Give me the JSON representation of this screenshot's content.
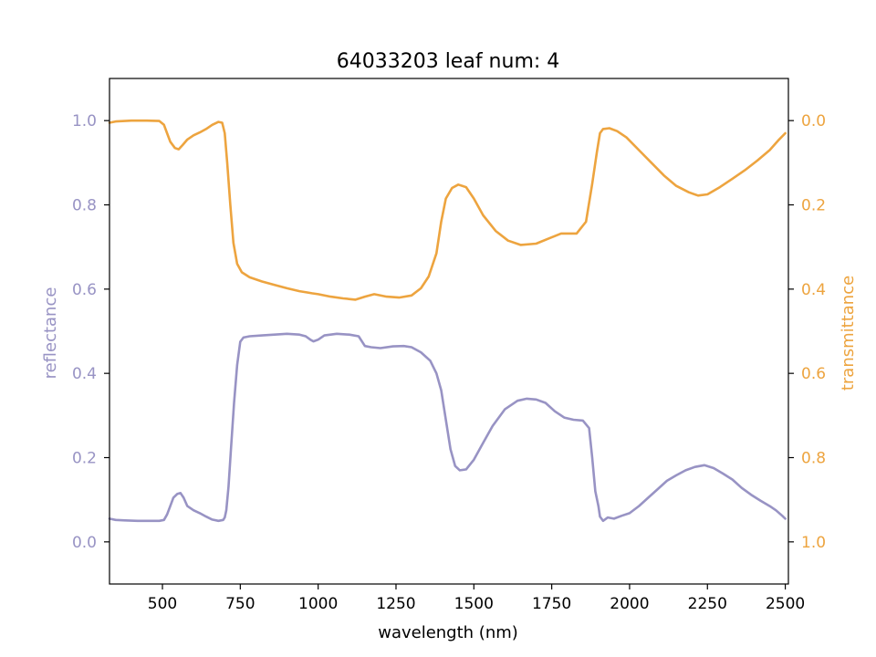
{
  "chart_data": {
    "type": "line",
    "title": "64033203 leaf num: 4",
    "xlabel": "wavelength (nm)",
    "ylabel_left": "reflectance",
    "ylabel_right": "transmittance",
    "xlim": [
      330,
      2510
    ],
    "ylim_left": [
      -0.1,
      1.1
    ],
    "ylim_right": [
      1.1,
      -0.1
    ],
    "right_axis_inverted": true,
    "x_ticks": [
      500,
      750,
      1000,
      1250,
      1500,
      1750,
      2000,
      2250,
      2500
    ],
    "x_tick_labels": [
      "500",
      "750",
      "1000",
      "1250",
      "1500",
      "1750",
      "2000",
      "2250",
      "2500"
    ],
    "y_left_ticks": [
      0.0,
      0.2,
      0.4,
      0.6,
      0.8,
      1.0
    ],
    "y_left_tick_labels": [
      "0.0",
      "0.2",
      "0.4",
      "0.6",
      "0.8",
      "1.0"
    ],
    "y_right_ticks": [
      0.0,
      0.2,
      0.4,
      0.6,
      0.8,
      1.0
    ],
    "y_right_tick_labels": [
      "0.0",
      "0.2",
      "0.4",
      "0.6",
      "0.8",
      "1.0"
    ],
    "grid": false,
    "legend": "none",
    "colors": {
      "reflectance": "#9893c4",
      "transmittance": "#eda43f",
      "axis": "#000000"
    },
    "series": [
      {
        "key": "reflectance",
        "axis": "left",
        "points": [
          [
            330,
            0.055
          ],
          [
            350,
            0.052
          ],
          [
            380,
            0.051
          ],
          [
            420,
            0.05
          ],
          [
            460,
            0.05
          ],
          [
            490,
            0.05
          ],
          [
            505,
            0.052
          ],
          [
            515,
            0.065
          ],
          [
            525,
            0.085
          ],
          [
            535,
            0.105
          ],
          [
            548,
            0.114
          ],
          [
            558,
            0.116
          ],
          [
            568,
            0.105
          ],
          [
            580,
            0.085
          ],
          [
            600,
            0.075
          ],
          [
            620,
            0.068
          ],
          [
            640,
            0.06
          ],
          [
            660,
            0.053
          ],
          [
            680,
            0.05
          ],
          [
            695,
            0.052
          ],
          [
            700,
            0.058
          ],
          [
            705,
            0.075
          ],
          [
            712,
            0.13
          ],
          [
            720,
            0.22
          ],
          [
            730,
            0.33
          ],
          [
            740,
            0.42
          ],
          [
            750,
            0.475
          ],
          [
            760,
            0.485
          ],
          [
            780,
            0.488
          ],
          [
            820,
            0.49
          ],
          [
            860,
            0.492
          ],
          [
            900,
            0.494
          ],
          [
            940,
            0.492
          ],
          [
            960,
            0.488
          ],
          [
            975,
            0.48
          ],
          [
            985,
            0.476
          ],
          [
            1000,
            0.48
          ],
          [
            1020,
            0.49
          ],
          [
            1060,
            0.494
          ],
          [
            1100,
            0.492
          ],
          [
            1130,
            0.488
          ],
          [
            1150,
            0.465
          ],
          [
            1170,
            0.462
          ],
          [
            1200,
            0.46
          ],
          [
            1240,
            0.464
          ],
          [
            1275,
            0.465
          ],
          [
            1300,
            0.462
          ],
          [
            1330,
            0.45
          ],
          [
            1360,
            0.43
          ],
          [
            1380,
            0.4
          ],
          [
            1395,
            0.36
          ],
          [
            1410,
            0.29
          ],
          [
            1425,
            0.22
          ],
          [
            1440,
            0.18
          ],
          [
            1455,
            0.17
          ],
          [
            1475,
            0.172
          ],
          [
            1500,
            0.195
          ],
          [
            1530,
            0.235
          ],
          [
            1560,
            0.275
          ],
          [
            1600,
            0.315
          ],
          [
            1640,
            0.335
          ],
          [
            1670,
            0.34
          ],
          [
            1700,
            0.338
          ],
          [
            1730,
            0.33
          ],
          [
            1760,
            0.31
          ],
          [
            1790,
            0.295
          ],
          [
            1820,
            0.29
          ],
          [
            1850,
            0.288
          ],
          [
            1870,
            0.27
          ],
          [
            1880,
            0.2
          ],
          [
            1890,
            0.12
          ],
          [
            1900,
            0.085
          ],
          [
            1905,
            0.06
          ],
          [
            1915,
            0.05
          ],
          [
            1930,
            0.058
          ],
          [
            1950,
            0.055
          ],
          [
            1975,
            0.062
          ],
          [
            2000,
            0.068
          ],
          [
            2030,
            0.085
          ],
          [
            2060,
            0.105
          ],
          [
            2090,
            0.125
          ],
          [
            2120,
            0.145
          ],
          [
            2150,
            0.158
          ],
          [
            2180,
            0.17
          ],
          [
            2210,
            0.178
          ],
          [
            2240,
            0.182
          ],
          [
            2270,
            0.175
          ],
          [
            2300,
            0.162
          ],
          [
            2330,
            0.148
          ],
          [
            2360,
            0.128
          ],
          [
            2390,
            0.112
          ],
          [
            2420,
            0.098
          ],
          [
            2450,
            0.085
          ],
          [
            2470,
            0.075
          ],
          [
            2490,
            0.062
          ],
          [
            2500,
            0.055
          ]
        ]
      },
      {
        "key": "transmittance",
        "axis": "right",
        "points": [
          [
            330,
            0.005
          ],
          [
            350,
            0.002
          ],
          [
            400,
            0.0
          ],
          [
            450,
            0.0
          ],
          [
            490,
            0.001
          ],
          [
            505,
            0.01
          ],
          [
            515,
            0.03
          ],
          [
            525,
            0.05
          ],
          [
            540,
            0.065
          ],
          [
            552,
            0.068
          ],
          [
            565,
            0.058
          ],
          [
            580,
            0.045
          ],
          [
            600,
            0.035
          ],
          [
            620,
            0.028
          ],
          [
            640,
            0.02
          ],
          [
            660,
            0.01
          ],
          [
            680,
            0.003
          ],
          [
            692,
            0.005
          ],
          [
            700,
            0.03
          ],
          [
            708,
            0.1
          ],
          [
            718,
            0.2
          ],
          [
            728,
            0.29
          ],
          [
            740,
            0.34
          ],
          [
            755,
            0.36
          ],
          [
            780,
            0.372
          ],
          [
            820,
            0.382
          ],
          [
            860,
            0.39
          ],
          [
            900,
            0.398
          ],
          [
            940,
            0.405
          ],
          [
            965,
            0.408
          ],
          [
            980,
            0.41
          ],
          [
            1000,
            0.412
          ],
          [
            1040,
            0.418
          ],
          [
            1080,
            0.422
          ],
          [
            1120,
            0.425
          ],
          [
            1150,
            0.418
          ],
          [
            1180,
            0.412
          ],
          [
            1220,
            0.418
          ],
          [
            1260,
            0.42
          ],
          [
            1300,
            0.415
          ],
          [
            1330,
            0.398
          ],
          [
            1355,
            0.37
          ],
          [
            1380,
            0.315
          ],
          [
            1395,
            0.24
          ],
          [
            1410,
            0.185
          ],
          [
            1430,
            0.16
          ],
          [
            1450,
            0.152
          ],
          [
            1475,
            0.158
          ],
          [
            1500,
            0.185
          ],
          [
            1530,
            0.225
          ],
          [
            1570,
            0.262
          ],
          [
            1610,
            0.285
          ],
          [
            1650,
            0.295
          ],
          [
            1700,
            0.292
          ],
          [
            1740,
            0.28
          ],
          [
            1780,
            0.268
          ],
          [
            1830,
            0.268
          ],
          [
            1860,
            0.24
          ],
          [
            1880,
            0.15
          ],
          [
            1895,
            0.075
          ],
          [
            1905,
            0.03
          ],
          [
            1915,
            0.02
          ],
          [
            1935,
            0.018
          ],
          [
            1960,
            0.025
          ],
          [
            1990,
            0.04
          ],
          [
            2030,
            0.07
          ],
          [
            2070,
            0.1
          ],
          [
            2110,
            0.13
          ],
          [
            2150,
            0.155
          ],
          [
            2190,
            0.17
          ],
          [
            2220,
            0.178
          ],
          [
            2250,
            0.175
          ],
          [
            2290,
            0.158
          ],
          [
            2330,
            0.138
          ],
          [
            2370,
            0.118
          ],
          [
            2410,
            0.095
          ],
          [
            2450,
            0.07
          ],
          [
            2480,
            0.045
          ],
          [
            2500,
            0.03
          ]
        ]
      }
    ]
  }
}
